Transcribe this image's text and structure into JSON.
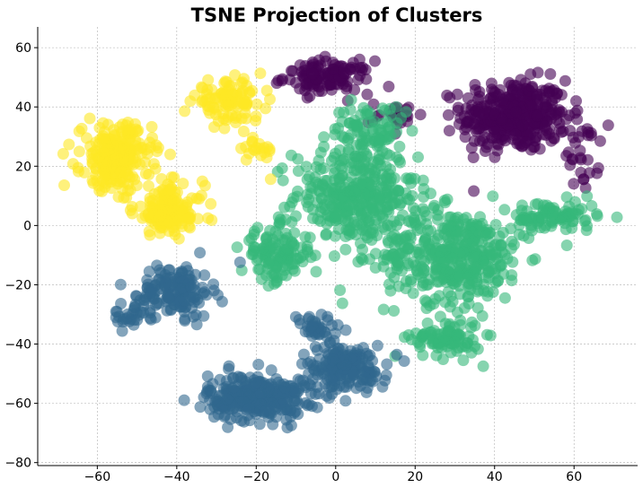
{
  "chart_data": {
    "type": "scatter",
    "title": "TSNE Projection of Clusters",
    "xlabel": "",
    "ylabel": "",
    "xlim": [
      -75,
      76
    ],
    "ylim": [
      -81,
      67
    ],
    "xticks": [
      -60,
      -40,
      -20,
      0,
      20,
      40,
      60
    ],
    "yticks": [
      -80,
      -60,
      -40,
      -20,
      0,
      20,
      40,
      60
    ],
    "xtick_labels": [
      "−60",
      "−40",
      "−20",
      "0",
      "20",
      "40",
      "60"
    ],
    "ytick_labels": [
      "−80",
      "−60",
      "−40",
      "−20",
      "0",
      "20",
      "40",
      "60"
    ],
    "grid": true,
    "point_alpha": 0.6,
    "series": [
      {
        "color": "#440154",
        "regions": [
          {
            "center": [
              45,
              37
            ],
            "spread": [
              12,
              11
            ],
            "count": 380
          },
          {
            "center": [
              -2,
              50
            ],
            "spread": [
              10,
              5
            ],
            "count": 120
          },
          {
            "center": [
              15,
              37
            ],
            "spread": [
              6,
              4
            ],
            "count": 25
          },
          {
            "center": [
              62,
              25
            ],
            "spread": [
              4,
              12
            ],
            "count": 30
          }
        ]
      },
      {
        "color": "#35b779",
        "regions": [
          {
            "center": [
              5,
              10
            ],
            "spread": [
              14,
              15
            ],
            "count": 350
          },
          {
            "center": [
              30,
              -10
            ],
            "spread": [
              16,
              14
            ],
            "count": 400
          },
          {
            "center": [
              -15,
              -10
            ],
            "spread": [
              8,
              8
            ],
            "count": 120
          },
          {
            "center": [
              28,
              -38
            ],
            "spread": [
              8,
              6
            ],
            "count": 90
          },
          {
            "center": [
              55,
              3
            ],
            "spread": [
              10,
              5
            ],
            "count": 90
          },
          {
            "center": [
              8,
              32
            ],
            "spread": [
              8,
              8
            ],
            "count": 80
          }
        ]
      },
      {
        "color": "#31688e",
        "regions": [
          {
            "center": [
              -20,
              -58
            ],
            "spread": [
              11,
              7
            ],
            "count": 300
          },
          {
            "center": [
              2,
              -48
            ],
            "spread": [
              10,
              7
            ],
            "count": 180
          },
          {
            "center": [
              -40,
              -22
            ],
            "spread": [
              8,
              8
            ],
            "count": 150
          },
          {
            "center": [
              -52,
              -30
            ],
            "spread": [
              5,
              4
            ],
            "count": 30
          },
          {
            "center": [
              -5,
              -35
            ],
            "spread": [
              6,
              5
            ],
            "count": 40
          }
        ]
      },
      {
        "color": "#fde725",
        "regions": [
          {
            "center": [
              -55,
              23
            ],
            "spread": [
              8,
              10
            ],
            "count": 250
          },
          {
            "center": [
              -42,
              5
            ],
            "spread": [
              8,
              8
            ],
            "count": 150
          },
          {
            "center": [
              -27,
              42
            ],
            "spread": [
              8,
              6
            ],
            "count": 100
          },
          {
            "center": [
              -20,
              25
            ],
            "spread": [
              4,
              5
            ],
            "count": 20
          }
        ]
      }
    ]
  }
}
